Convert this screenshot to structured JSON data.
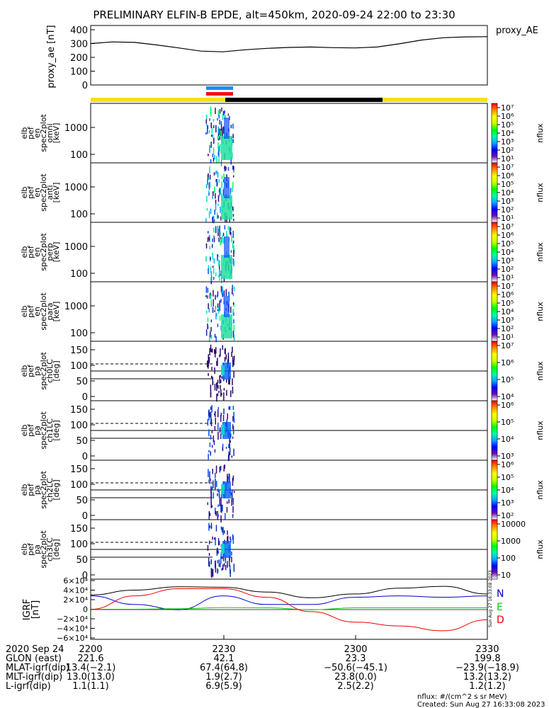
{
  "title": "PRELIMINARY ELFIN-B EPDE, alt=450km, 2020-09-24 22:00 to 23:30",
  "colors": {
    "yellow_bar": "#f5e11a",
    "black_bar": "#000000",
    "blue_marker": "#1a8cff",
    "red_marker": "#ee1111",
    "grf_n": "#0000cc",
    "grf_e": "#00cc00",
    "grf_d": "#ee0000",
    "grf_total": "#000000"
  },
  "spec_panels": [
    {
      "labels": [
        "elb",
        "pef",
        "en",
        "spec2plot",
        "omni",
        "[keV]"
      ],
      "yticks": [
        "1000",
        "100"
      ],
      "cb_ticks": [
        "10⁷",
        "10⁶",
        "10⁵",
        "10⁴",
        "10³",
        "10²",
        "10¹"
      ],
      "cb_label": "nflux"
    },
    {
      "labels": [
        "elb",
        "pef",
        "en",
        "spec2plot",
        "anti",
        "[keV]"
      ],
      "yticks": [
        "1000",
        "100"
      ],
      "cb_ticks": [
        "10⁷",
        "10⁶",
        "10⁵",
        "10⁴",
        "10³",
        "10²",
        "10¹"
      ],
      "cb_label": "nflux"
    },
    {
      "labels": [
        "elb",
        "pef",
        "en",
        "spec2plot",
        "perp",
        "[keV]"
      ],
      "yticks": [
        "1000",
        "100"
      ],
      "cb_ticks": [
        "10⁷",
        "10⁶",
        "10⁵",
        "10⁴",
        "10³",
        "10²",
        "10¹"
      ],
      "cb_label": "nflux"
    },
    {
      "labels": [
        "elb",
        "pef",
        "en",
        "spec2plot",
        "para",
        "[keV]"
      ],
      "yticks": [
        "1000",
        "100"
      ],
      "cb_ticks": [
        "10⁷",
        "10⁶",
        "10⁵",
        "10⁴",
        "10³",
        "10²",
        "10¹"
      ],
      "cb_label": "nflux"
    }
  ],
  "pa_panels": [
    {
      "labels": [
        "elb",
        "pef",
        "pa",
        "spec2plot",
        "ch0LC",
        "[deg]"
      ],
      "yticks": [
        "150",
        "100",
        "50",
        "0"
      ],
      "cb_ticks": [
        "10⁷",
        "10⁶",
        "10⁵",
        "10⁴"
      ],
      "cb_label": "nflux"
    },
    {
      "labels": [
        "elb",
        "pef",
        "pa",
        "spec2plot",
        "ch1LC",
        "[deg]"
      ],
      "yticks": [
        "150",
        "100",
        "50",
        "0"
      ],
      "cb_ticks": [
        "10⁶",
        "10⁵",
        "10⁴",
        "10³"
      ],
      "cb_label": "nflux"
    },
    {
      "labels": [
        "elb",
        "pef",
        "pa",
        "spec2plot",
        "ch2LC",
        "[deg]"
      ],
      "yticks": [
        "150",
        "100",
        "50",
        "0"
      ],
      "cb_ticks": [
        "10⁶",
        "10⁵",
        "10⁴",
        "10³",
        "10²"
      ],
      "cb_label": "nflux"
    },
    {
      "labels": [
        "elb",
        "pef",
        "pa",
        "spec2plot",
        "ch3LC",
        "[deg]"
      ],
      "yticks": [
        "150",
        "100",
        "50",
        "0"
      ],
      "cb_ticks": [
        "10000",
        "1000",
        "100",
        "10"
      ],
      "cb_label": "nflux"
    }
  ],
  "grf": {
    "ylabel": [
      "IGRF",
      "[nT]"
    ],
    "yticks": [
      "6×10⁴",
      "4×10⁴",
      "2×10⁴",
      "0",
      "−2×10⁴",
      "−4×10⁴",
      "−6×10⁴"
    ],
    "legend": [
      "N",
      "E",
      "D"
    ],
    "stamp": "Sun Aug 27 16:33:08 2023"
  },
  "footer": {
    "rows": [
      {
        "label": "2020 Sep 24",
        "values": [
          "2200",
          "2230",
          "2300",
          "2330"
        ]
      },
      {
        "label": "GLON (east)",
        "values": [
          "221.6",
          "42.1",
          "23.3",
          "199.8"
        ]
      },
      {
        "label": "MLAT-igrf(dip)",
        "values": [
          "13.4(−2.1)",
          "67.4(64.8)",
          "−50.6(−45.1)",
          "−23.9(−18.9)"
        ]
      },
      {
        "label": "MLT-igrf(dip)",
        "values": [
          "13.0(13.0)",
          "1.9(2.7)",
          "23.8(0.0)",
          "13.2(13.2)"
        ]
      },
      {
        "label": "L-igrf(dip)",
        "values": [
          "1.1(1.1)",
          "6.9(5.9)",
          "2.5(2.2)",
          "1.2(1.2)"
        ]
      }
    ],
    "unit_note": "nflux: #/(cm^2 s sr MeV)",
    "created": "Created: Sun Aug 27 16:33:08 2023"
  },
  "chart_data": [
    {
      "type": "line",
      "name": "proxy_ae",
      "ylabel": "proxy_ae [nT]",
      "legend": "proxy_AE",
      "ylim": [
        0,
        400
      ],
      "yticks": [
        0,
        100,
        200,
        300,
        400
      ],
      "x_minutes": [
        0,
        5,
        10,
        15,
        20,
        25,
        30,
        35,
        40,
        45,
        50,
        55,
        60,
        65,
        70,
        75,
        80,
        85,
        90
      ],
      "y": [
        300,
        312,
        308,
        290,
        268,
        245,
        240,
        255,
        265,
        272,
        275,
        270,
        268,
        275,
        298,
        325,
        342,
        348,
        350
      ]
    },
    {
      "type": "line",
      "name": "IGRF",
      "ylim": [
        -60000,
        60000
      ],
      "x_minutes": [
        0,
        10,
        20,
        30,
        40,
        50,
        60,
        70,
        80,
        90
      ],
      "series": [
        {
          "name": "N",
          "values": [
            28000,
            10000,
            -1000,
            28000,
            10000,
            10000,
            25000,
            28000,
            25000,
            28000
          ]
        },
        {
          "name": "E",
          "values": [
            0,
            0,
            1000,
            3500,
            3000,
            -1000,
            3000,
            3000,
            3000,
            3000
          ]
        },
        {
          "name": "D",
          "values": [
            0,
            28000,
            43000,
            43000,
            25000,
            -5000,
            -27000,
            -35000,
            -45000,
            -22000
          ]
        }
      ]
    }
  ]
}
